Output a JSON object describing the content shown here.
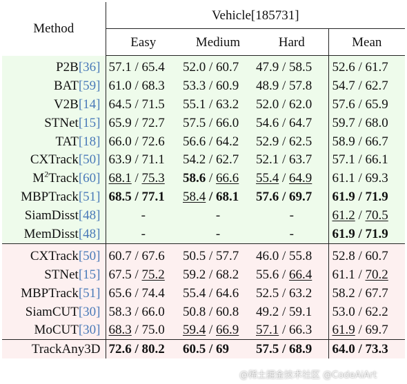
{
  "header": {
    "method": "Method",
    "group": "Vehicle[185731]",
    "cols": [
      "Easy",
      "Medium",
      "Hard",
      "Mean"
    ]
  },
  "rows": [
    {
      "name": "P2B",
      "ref": "[36]",
      "easy": "57.1 / 65.4",
      "medium": "52.0 / 60.7",
      "hard": "47.9 / 58.5",
      "mean": "52.6 / 61.7"
    },
    {
      "name": "BAT",
      "ref": "[59]",
      "easy": "61.0 / 68.3",
      "medium": "53.3 / 60.9",
      "hard": "48.9 / 57.8",
      "mean": "54.7 / 62.7"
    },
    {
      "name": "V2B",
      "ref": "[14]",
      "easy": "64.5 / 71.5",
      "medium": "55.1 / 63.2",
      "hard": "52.0 / 62.0",
      "mean": "57.6 / 65.9"
    },
    {
      "name": "STNet",
      "ref": "[15]",
      "easy": "65.9 / 72.7",
      "medium": "57.5 / 66.0",
      "hard": "54.6 / 64.7",
      "mean": "59.7 / 68.0"
    },
    {
      "name": "TAT",
      "ref": "[18]",
      "easy": "66.0 / 72.6",
      "medium": "56.6 / 64.2",
      "hard": "52.9 / 62.5",
      "mean": "58.9 / 66.7"
    },
    {
      "name": "CXTrack",
      "ref": "[50]",
      "easy": "63.9 / 71.1",
      "medium": "54.2 / 62.7",
      "hard": "52.1 / 63.7",
      "mean": "57.1 / 66.1"
    },
    {
      "name_pre": "M",
      "name_sup": "2",
      "name": "Track",
      "ref": "[60]",
      "easy_a": "68.1",
      "easy_b": "75.3",
      "medium_a": "58.6",
      "medium_b": "66.6",
      "hard_a": "55.4",
      "hard_b": "64.9",
      "mean": "61.1 / 69.3"
    },
    {
      "name": "MBPTrack",
      "ref": "[51]",
      "easy_a": "68.5",
      "easy_b": "77.1",
      "medium_a": "58.4",
      "medium_b": "68.1",
      "hard_a": "57.6",
      "hard_b": "69.7",
      "mean_a": "61.9",
      "mean_b": "71.9"
    },
    {
      "name": "SiamDisst",
      "ref": "[48]",
      "easy": "-",
      "medium": "-",
      "hard": "-",
      "mean_a": "61.2",
      "mean_b": "70.5"
    },
    {
      "name": "MemDisst",
      "ref": "[48]",
      "easy": "-",
      "medium": "-",
      "hard": "-",
      "mean_a": "61.9",
      "mean_b": "71.9"
    }
  ],
  "rows2": [
    {
      "name": "CXTrack",
      "ref": "[50]",
      "easy": "60.7 / 67.6",
      "medium": "50.5 / 57.7",
      "hard": "46.0 / 55.8",
      "mean": "52.8 / 60.7"
    },
    {
      "name": "STNet",
      "ref": "[15]",
      "easy_a": "67.5",
      "easy_b": "75.2",
      "medium": "59.2 / 68.2",
      "hard_a": "55.6",
      "hard_b": "66.4",
      "mean_a": "61.1",
      "mean_b": "70.2"
    },
    {
      "name": "MBPTrack",
      "ref": "[51]",
      "easy": "65.6 / 74.4",
      "medium": "55.4 / 64.6",
      "hard": "52.5 / 63.2",
      "mean": "58.2 / 67.7"
    },
    {
      "name": "SiamCUT",
      "ref": "[30]",
      "easy": "58.3 / 66.0",
      "medium": "50.8 / 60.8",
      "hard": "49.2 / 59.1",
      "mean": "53.0 / 62.2"
    },
    {
      "name": "MoCUT",
      "ref": "[30]",
      "easy_a": "68.3",
      "easy_b": "75.0",
      "medium_a": "59.4",
      "medium_b": "66.9",
      "hard_a": "57.1",
      "hard_b": "66.3",
      "mean_a": "61.9",
      "mean_b": "69.7"
    }
  ],
  "final": {
    "name": "TrackAny3D",
    "easy": "72.6 / 80.2",
    "medium": "60.5 / 69",
    "hard": "57.5 / 68.9",
    "mean": "64.0 / 73.3"
  },
  "watermark": "@稀土掘金技术社区 @CodeAiArt"
}
